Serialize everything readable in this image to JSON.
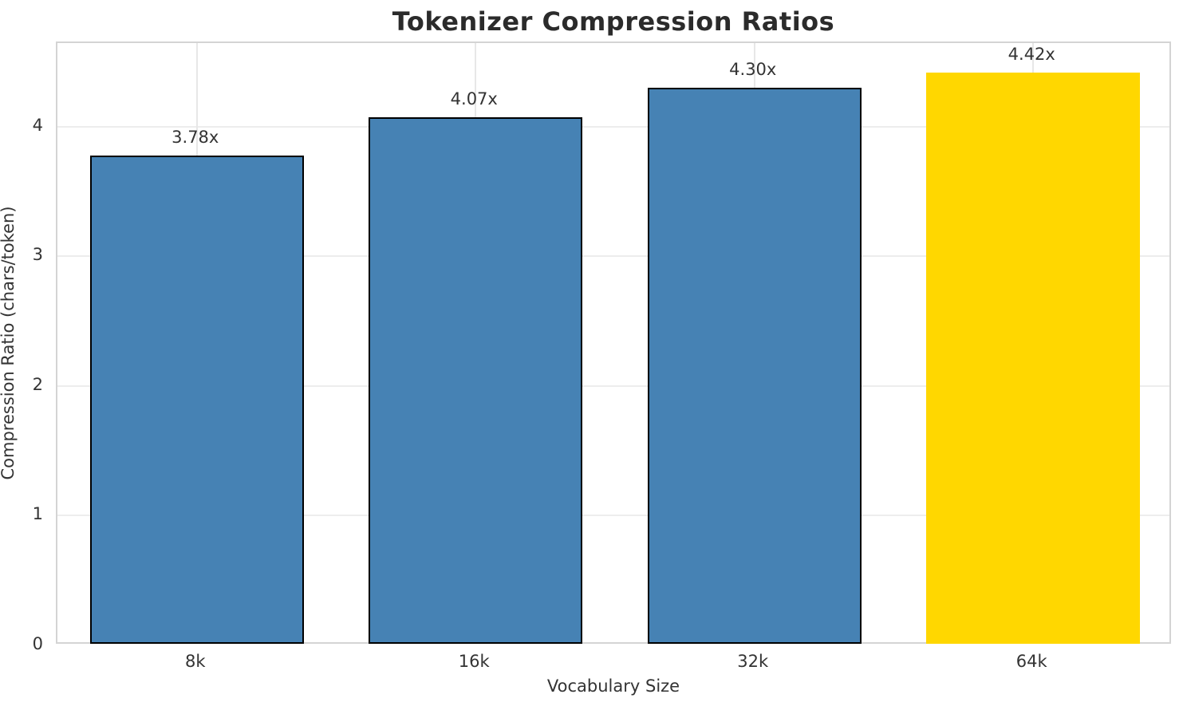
{
  "chart_data": {
    "type": "bar",
    "title": "Tokenizer Compression Ratios",
    "xlabel": "Vocabulary Size",
    "ylabel": "Compression Ratio (chars/token)",
    "categories": [
      "8k",
      "16k",
      "32k",
      "64k"
    ],
    "values": [
      3.78,
      4.07,
      4.3,
      4.42
    ],
    "bar_labels": [
      "3.78x",
      "4.07x",
      "4.30x",
      "4.42x"
    ],
    "bar_colors": [
      "#4682B4",
      "#4682B4",
      "#4682B4",
      "#FFD700"
    ],
    "bar_edge_colors": [
      "#000000",
      "#000000",
      "#000000",
      "none"
    ],
    "highlight_index": 3,
    "ylim": [
      0,
      4.645
    ],
    "yticks": [
      0,
      1,
      2,
      3,
      4
    ],
    "grid": "on",
    "legend": "none",
    "colors": {
      "primary_bar": "#4682B4",
      "highlight_bar": "#FFD700",
      "bar_edge": "#000000",
      "grid_line": "#ededed",
      "spine": "#d4d4d4",
      "text": "#333333",
      "title_text": "#2b2b2b",
      "background": "#ffffff"
    }
  }
}
